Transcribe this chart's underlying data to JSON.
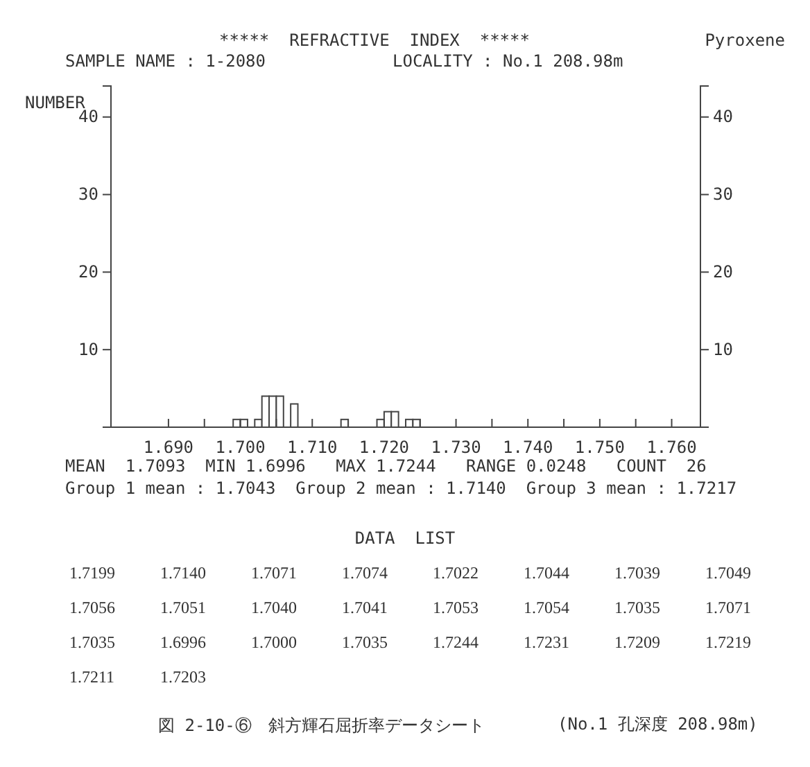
{
  "chart_data": {
    "type": "histogram",
    "title": "*****  REFRACTIVE  INDEX  *****",
    "ylabel": "NUMBER",
    "bins": [
      1.699,
      1.7,
      1.701,
      1.702,
      1.703,
      1.704,
      1.705,
      1.706,
      1.707,
      1.708,
      1.709,
      1.71,
      1.711,
      1.712,
      1.713,
      1.714,
      1.715,
      1.716,
      1.717,
      1.718,
      1.719,
      1.72,
      1.721,
      1.722,
      1.723,
      1.724,
      1.725
    ],
    "values": [
      1,
      1,
      0,
      1,
      4,
      4,
      4,
      0,
      3,
      0,
      0,
      0,
      0,
      0,
      0,
      1,
      0,
      0,
      0,
      0,
      1,
      2,
      2,
      0,
      1,
      1
    ],
    "color": "#ffffff",
    "xlim": [
      1.682,
      1.764
    ],
    "xticks": [
      {
        "value": 1.69,
        "label": "1.690"
      },
      {
        "value": 1.695,
        "label": null
      },
      {
        "value": 1.7,
        "label": "1.700"
      },
      {
        "value": 1.705,
        "label": null
      },
      {
        "value": 1.71,
        "label": "1.710"
      },
      {
        "value": 1.715,
        "label": null
      },
      {
        "value": 1.72,
        "label": "1.720"
      },
      {
        "value": 1.725,
        "label": null
      },
      {
        "value": 1.73,
        "label": "1.730"
      },
      {
        "value": 1.735,
        "label": null
      },
      {
        "value": 1.74,
        "label": "1.740"
      },
      {
        "value": 1.745,
        "label": null
      },
      {
        "value": 1.75,
        "label": "1.750"
      },
      {
        "value": 1.755,
        "label": null
      },
      {
        "value": 1.76,
        "label": "1.760"
      }
    ],
    "ylim": [
      0,
      44
    ],
    "yticks": [
      10,
      20,
      30,
      40
    ],
    "y2lim": [
      0,
      44
    ],
    "y2ticks": [
      10,
      20,
      30,
      40
    ],
    "grid": false,
    "annotations": [
      "SAMPLE NAME : 1-2080",
      "LOCALITY : No.1 208.98m",
      "Pyroxene",
      "MEAN  1.7093  MIN 1.6996   MAX 1.7244   RANGE 0.0248   COUNT  26",
      "Group 1 mean : 1.7043  Group 2 mean : 1.7140  Group 3 mean : 1.7217",
      "DATA  LIST",
      "1.7199",
      "1.7140",
      "1.7071",
      "1.7074",
      "1.7022",
      "1.7044",
      "1.7039",
      "1.7049",
      "1.7056",
      "1.7051",
      "1.7040",
      "1.7041",
      "1.7053",
      "1.7054",
      "1.7035",
      "1.7071",
      "1.7035",
      "1.6996",
      "1.7000",
      "1.7035",
      "1.7244",
      "1.7231",
      "1.7209",
      "1.7219",
      "1.7211",
      "1.7203",
      "図 2-10-⑥　斜方輝石屈折率データシート",
      "(No.1 孔深度 208.98m)"
    ]
  }
}
